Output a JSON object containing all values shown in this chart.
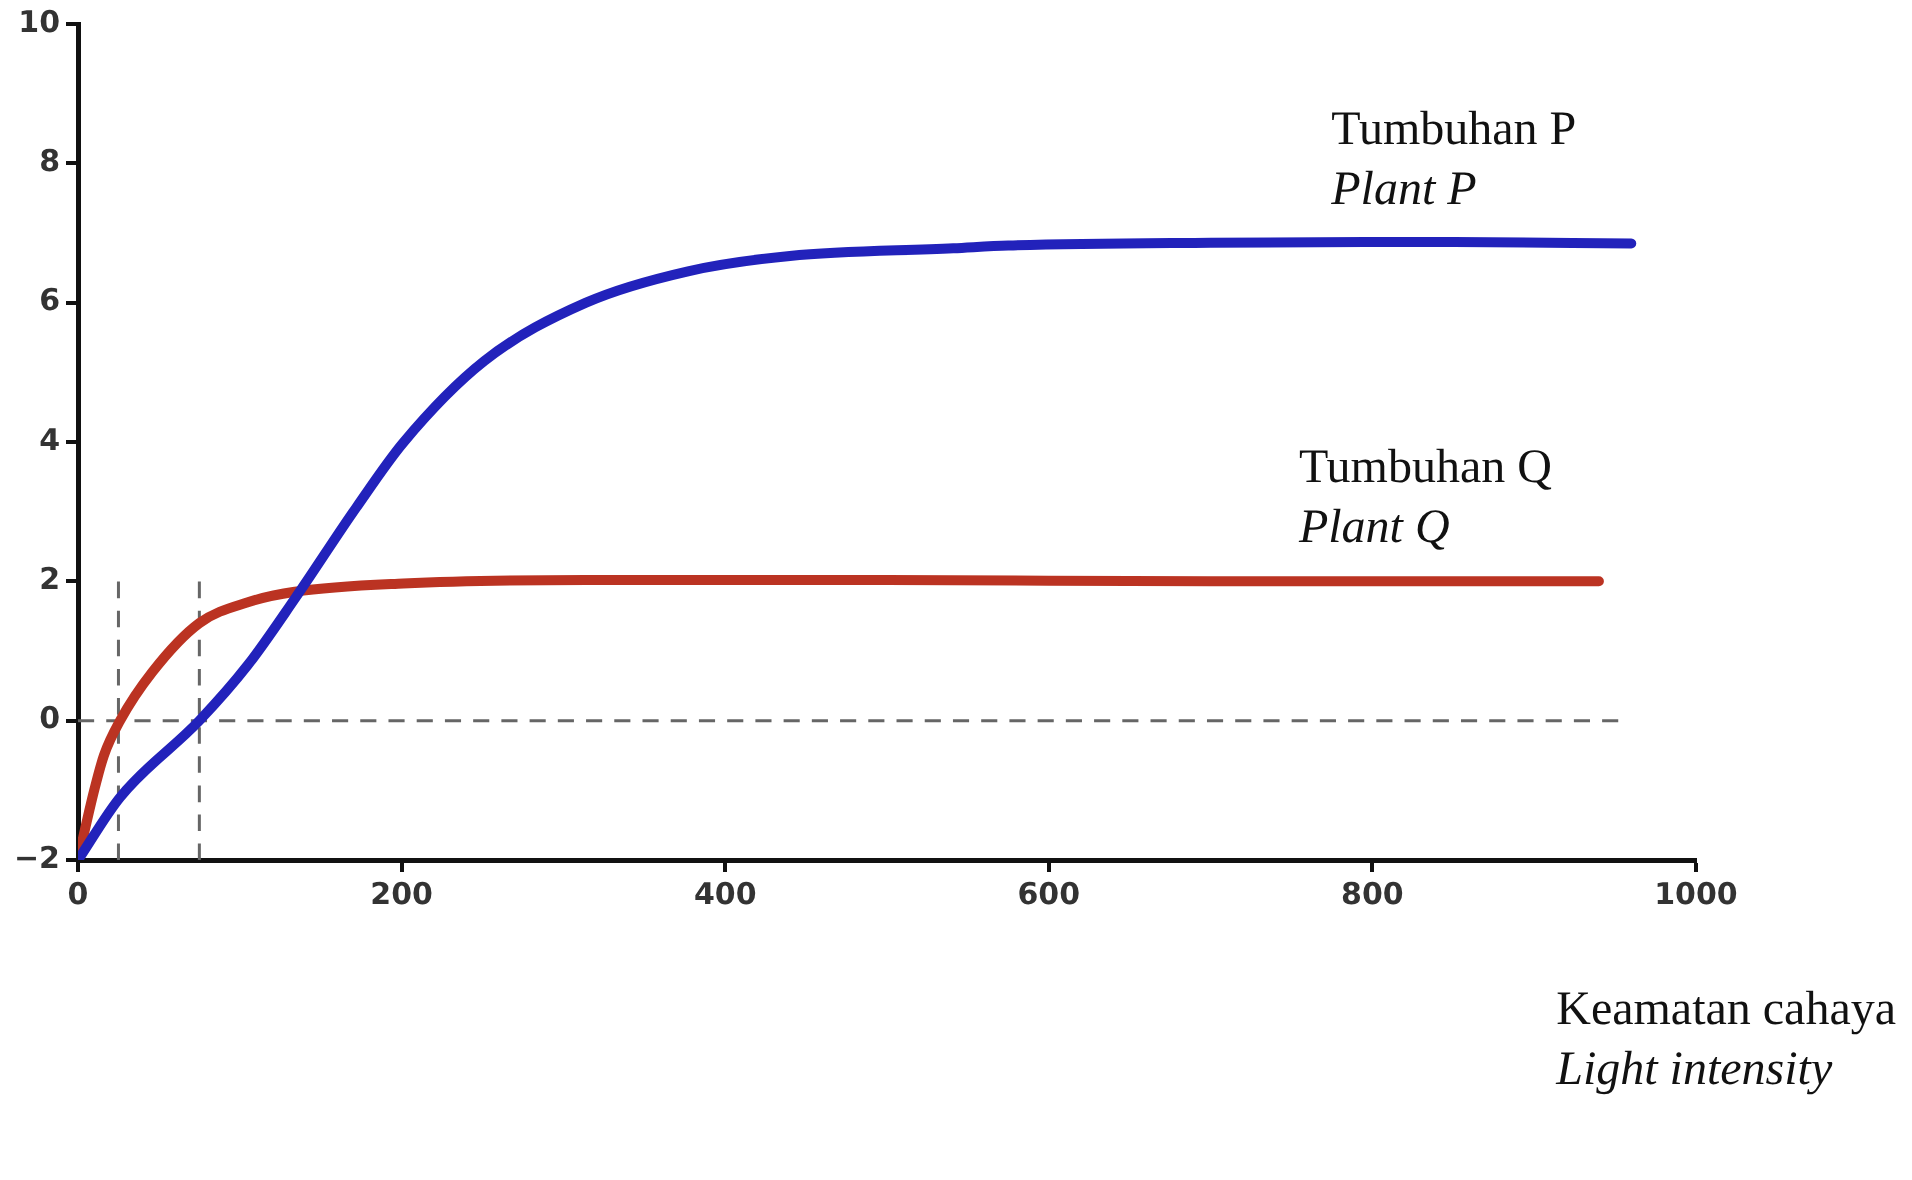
{
  "chart_data": {
    "type": "line",
    "xlabel": "Keamatan cahaya\nLight intensity",
    "xlim": [
      0,
      1000
    ],
    "xticks": [
      0,
      200,
      400,
      600,
      800,
      1000
    ],
    "ylim": [
      -2,
      10
    ],
    "yticks": [
      {
        "value": -2,
        "label": "−2"
      },
      0,
      2,
      4,
      6,
      8,
      10
    ],
    "grid": false,
    "legend": false,
    "marker": "none",
    "series": [
      {
        "name": "Tumbuhan P\nPlant P",
        "color": "#2222bb",
        "x": [
          0,
          26,
          75,
          105,
          134,
          172,
          201,
          251,
          314,
          377,
          440,
          541,
          575,
          700,
          850,
          960
        ],
        "values": [
          -2,
          -1.1,
          0.0,
          0.8,
          1.75,
          3.06,
          3.99,
          5.16,
          6.0,
          6.45,
          6.67,
          6.78,
          6.82,
          6.86,
          6.87,
          6.85
        ]
      },
      {
        "name": "Tumbuhan Q\nPlant Q",
        "color": "#bb3322",
        "x": [
          0,
          10,
          16,
          26,
          46,
          75,
          105,
          134,
          201,
          314,
          500,
          700,
          940
        ],
        "values": [
          -2,
          -1.0,
          -0.5,
          0.0,
          0.7,
          1.4,
          1.7,
          1.85,
          1.97,
          2.02,
          2.02,
          2.0,
          2.0
        ]
      },
      {
        "type": "line",
        "line_style": "dashed",
        "color": "#666666",
        "x": [
          0,
          952
        ],
        "values": [
          0,
          0
        ]
      },
      {
        "type": "line",
        "line_style": "dashed",
        "color": "#666666",
        "x": [
          25,
          25
        ],
        "values": [
          -2,
          2
        ]
      },
      {
        "type": "line",
        "line_style": "dashed",
        "color": "#666666",
        "x": [
          75,
          75
        ],
        "values": [
          -2,
          2
        ]
      }
    ]
  }
}
